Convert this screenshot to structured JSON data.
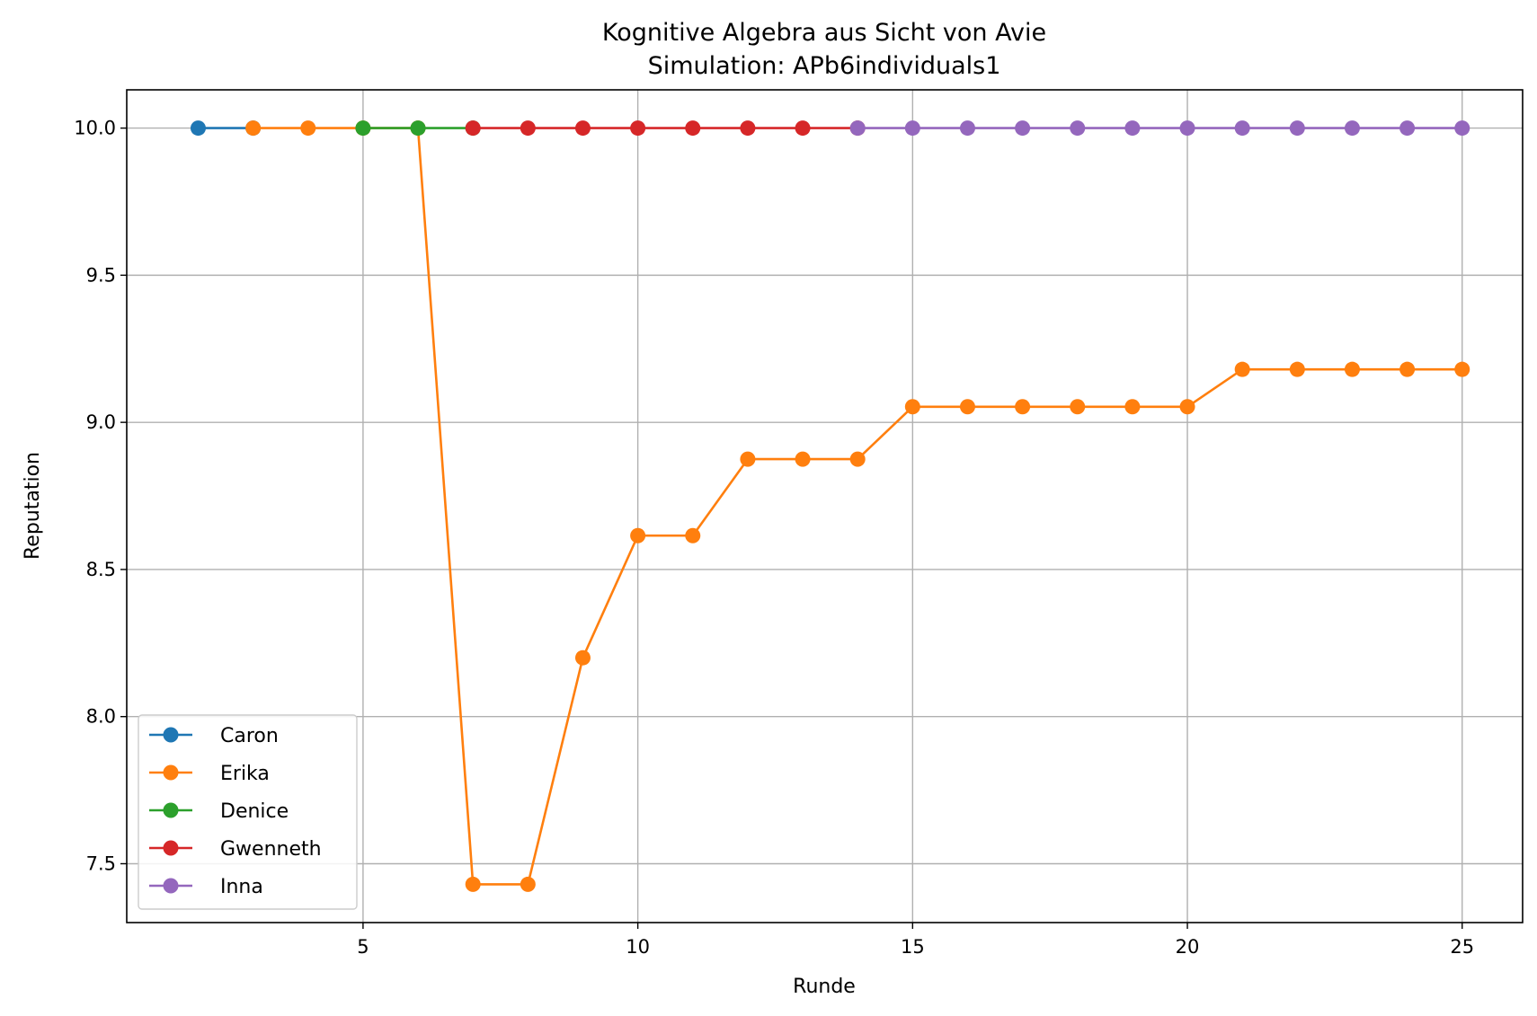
{
  "chart_data": {
    "type": "line",
    "title": "Kognitive Algebra aus Sicht von Avie",
    "subtitle": "Simulation: APb6individuals1",
    "xlabel": "Runde",
    "ylabel": "Reputation",
    "xlim": [
      0.7,
      26.1
    ],
    "ylim": [
      7.3,
      10.13
    ],
    "xticks": [
      5,
      10,
      15,
      20,
      25
    ],
    "xtick_labels": [
      "5",
      "10",
      "15",
      "20",
      "25"
    ],
    "yticks": [
      7.5,
      8.0,
      8.5,
      9.0,
      9.5,
      10.0
    ],
    "ytick_labels": [
      "7.5",
      "8.0",
      "8.5",
      "9.0",
      "9.5",
      "10.0"
    ],
    "grid": true,
    "legend_position": "lower-left",
    "series": [
      {
        "name": "Caron",
        "color": "#1f77b4",
        "x": [
          2,
          3
        ],
        "y": [
          10.0,
          10.0
        ]
      },
      {
        "name": "Erika",
        "color": "#ff7f0e",
        "x": [
          3,
          4,
          5,
          6,
          7,
          8,
          9,
          10,
          11,
          12,
          13,
          14,
          15,
          16,
          17,
          18,
          19,
          20,
          21,
          22,
          23,
          24,
          25
        ],
        "y": [
          10.0,
          10.0,
          10.0,
          10.0,
          7.43,
          7.43,
          8.2,
          8.615,
          8.615,
          8.875,
          8.875,
          8.875,
          9.053,
          9.053,
          9.053,
          9.053,
          9.053,
          9.053,
          9.18,
          9.18,
          9.18,
          9.18,
          9.18
        ]
      },
      {
        "name": "Denice",
        "color": "#2ca02c",
        "x": [
          5,
          6,
          7
        ],
        "y": [
          10.0,
          10.0,
          10.0
        ]
      },
      {
        "name": "Gwenneth",
        "color": "#d62728",
        "x": [
          7,
          8,
          9,
          10,
          11,
          12,
          13,
          14
        ],
        "y": [
          10.0,
          10.0,
          10.0,
          10.0,
          10.0,
          10.0,
          10.0,
          10.0
        ]
      },
      {
        "name": "Inna",
        "color": "#9467bd",
        "x": [
          14,
          15,
          16,
          17,
          18,
          19,
          20,
          21,
          22,
          23,
          24,
          25
        ],
        "y": [
          10.0,
          10.0,
          10.0,
          10.0,
          10.0,
          10.0,
          10.0,
          10.0,
          10.0,
          10.0,
          10.0,
          10.0
        ]
      }
    ]
  }
}
